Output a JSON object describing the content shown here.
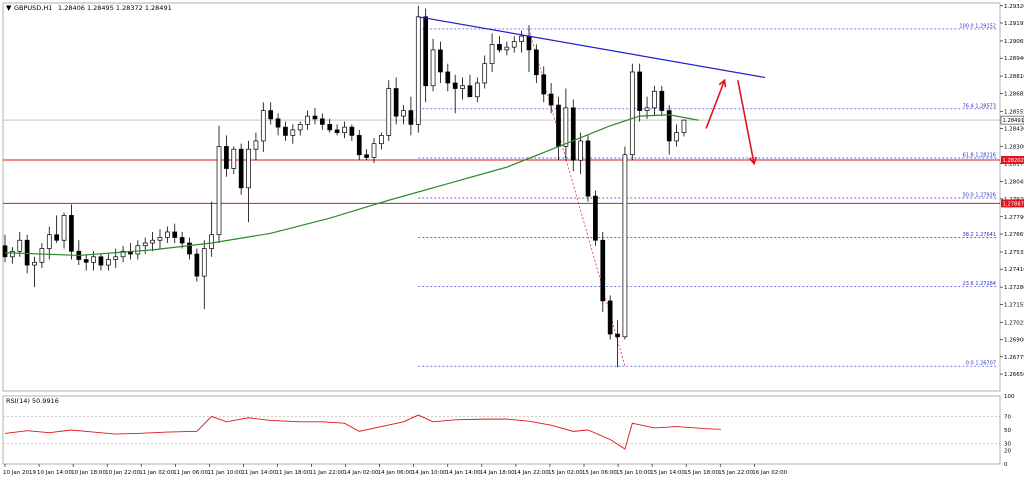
{
  "window": {
    "title": "GBPUSD,H1",
    "ohlc": "1.28406 1.28495 1.28372 1.28491"
  },
  "chart_data": [
    {
      "type": "candlestick",
      "symbol": "GBPUSD",
      "timeframe": "H1",
      "ylim": [
        1.26527,
        1.2934
      ],
      "y_ticks": [
        "1.29320",
        "1.29195",
        "1.29065",
        "1.28940",
        "1.28810",
        "1.28685",
        "1.28555",
        "1.28430",
        "1.28300",
        "1.28175",
        "1.28045",
        "1.27920",
        "1.27790",
        "1.27665",
        "1.27535",
        "1.27410",
        "1.27280",
        "1.27155",
        "1.27025",
        "1.26900",
        "1.26775",
        "1.26650"
      ],
      "x_ticks": [
        "10 Jan 2019",
        "10 Jan 14:00",
        "10 Jan 18:00",
        "10 Jan 22:00",
        "11 Jan 02:00",
        "11 Jan 06:00",
        "11 Jan 10:00",
        "11 Jan 14:00",
        "11 Jan 18:00",
        "11 Jan 22:00",
        "14 Jan 02:00",
        "14 Jan 06:00",
        "14 Jan 10:00",
        "14 Jan 14:00",
        "14 Jan 18:00",
        "14 Jan 22:00",
        "15 Jan 02:00",
        "15 Jan 06:00",
        "15 Jan 10:00",
        "15 Jan 14:00",
        "15 Jan 18:00",
        "15 Jan 22:00",
        "16 Jan 02:00"
      ],
      "candles": [
        [
          1.2758,
          1.2766,
          1.2746,
          1.275
        ],
        [
          1.275,
          1.2757,
          1.2745,
          1.2754
        ],
        [
          1.2754,
          1.2768,
          1.275,
          1.2762
        ],
        [
          1.2762,
          1.2766,
          1.2738,
          1.2744
        ],
        [
          1.2744,
          1.275,
          1.2728,
          1.2746
        ],
        [
          1.2746,
          1.276,
          1.2742,
          1.2756
        ],
        [
          1.2756,
          1.2772,
          1.2748,
          1.2766
        ],
        [
          1.2766,
          1.278,
          1.276,
          1.2762
        ],
        [
          1.2762,
          1.2782,
          1.2756,
          1.278
        ],
        [
          1.278,
          1.2788,
          1.2748,
          1.2754
        ],
        [
          1.2754,
          1.2762,
          1.2744,
          1.2748
        ],
        [
          1.2748,
          1.2752,
          1.274,
          1.2746
        ],
        [
          1.2746,
          1.2754,
          1.274,
          1.275
        ],
        [
          1.275,
          1.2752,
          1.274,
          1.2744
        ],
        [
          1.2744,
          1.2752,
          1.274,
          1.2748
        ],
        [
          1.2748,
          1.2756,
          1.2742,
          1.275
        ],
        [
          1.275,
          1.2758,
          1.2746,
          1.2754
        ],
        [
          1.2754,
          1.276,
          1.2748,
          1.2752
        ],
        [
          1.2752,
          1.2762,
          1.2748,
          1.2758
        ],
        [
          1.2758,
          1.2764,
          1.2752,
          1.276
        ],
        [
          1.276,
          1.2768,
          1.2754,
          1.2762
        ],
        [
          1.2762,
          1.277,
          1.2756,
          1.2764
        ],
        [
          1.2764,
          1.2772,
          1.276,
          1.2768
        ],
        [
          1.2768,
          1.2774,
          1.276,
          1.2764
        ],
        [
          1.2764,
          1.2768,
          1.2756,
          1.276
        ],
        [
          1.276,
          1.2764,
          1.2748,
          1.2752
        ],
        [
          1.2752,
          1.2756,
          1.2732,
          1.2736
        ],
        [
          1.2736,
          1.2762,
          1.2712,
          1.2756
        ],
        [
          1.2756,
          1.279,
          1.275,
          1.2766
        ],
        [
          1.2766,
          1.2845,
          1.276,
          1.283
        ],
        [
          1.283,
          1.2838,
          1.2808,
          1.2814
        ],
        [
          1.2814,
          1.283,
          1.281,
          1.2828
        ],
        [
          1.2828,
          1.2832,
          1.2795,
          1.28
        ],
        [
          1.28,
          1.2834,
          1.2775,
          1.2828
        ],
        [
          1.2828,
          1.284,
          1.282,
          1.2834
        ],
        [
          1.2834,
          1.2862,
          1.2826,
          1.2856
        ],
        [
          1.2856,
          1.2862,
          1.2846,
          1.285
        ],
        [
          1.285,
          1.2854,
          1.2838,
          1.2844
        ],
        [
          1.2844,
          1.2848,
          1.2834,
          1.2838
        ],
        [
          1.2838,
          1.2846,
          1.2832,
          1.2842
        ],
        [
          1.2842,
          1.2848,
          1.2838,
          1.2846
        ],
        [
          1.2846,
          1.2856,
          1.2842,
          1.2852
        ],
        [
          1.2852,
          1.2858,
          1.2846,
          1.285
        ],
        [
          1.285,
          1.2854,
          1.2842,
          1.2846
        ],
        [
          1.2846,
          1.285,
          1.284,
          1.2842
        ],
        [
          1.2842,
          1.2846,
          1.2838,
          1.284
        ],
        [
          1.284,
          1.2848,
          1.2836,
          1.2844
        ],
        [
          1.2844,
          1.2846,
          1.2834,
          1.2838
        ],
        [
          1.2838,
          1.2842,
          1.282,
          1.2824
        ],
        [
          1.2824,
          1.2828,
          1.282,
          1.2822
        ],
        [
          1.2822,
          1.2836,
          1.2818,
          1.2832
        ],
        [
          1.2832,
          1.284,
          1.2828,
          1.2838
        ],
        [
          1.2838,
          1.2878,
          1.2834,
          1.2872
        ],
        [
          1.2872,
          1.288,
          1.2846,
          1.2852
        ],
        [
          1.2852,
          1.286,
          1.2846,
          1.2856
        ],
        [
          1.2856,
          1.2866,
          1.2838,
          1.2846
        ],
        [
          1.2846,
          1.2932,
          1.284,
          1.2924
        ],
        [
          1.2924,
          1.293,
          1.2862,
          1.2874
        ],
        [
          1.2874,
          1.2908,
          1.287,
          1.29
        ],
        [
          1.29,
          1.2906,
          1.2876,
          1.2884
        ],
        [
          1.2884,
          1.289,
          1.287,
          1.2876
        ],
        [
          1.2876,
          1.2882,
          1.2854,
          1.2872
        ],
        [
          1.2872,
          1.288,
          1.2864,
          1.2874
        ],
        [
          1.2874,
          1.2882,
          1.2868,
          1.2866
        ],
        [
          1.2866,
          1.288,
          1.2862,
          1.2876
        ],
        [
          1.2876,
          1.2896,
          1.2872,
          1.289
        ],
        [
          1.289,
          1.2912,
          1.2884,
          1.2904
        ],
        [
          1.2904,
          1.291,
          1.2898,
          1.29
        ],
        [
          1.29,
          1.2906,
          1.2896,
          1.2902
        ],
        [
          1.2902,
          1.291,
          1.2898,
          1.2906
        ],
        [
          1.2906,
          1.2914,
          1.2898,
          1.291
        ],
        [
          1.291,
          1.2918,
          1.2884,
          1.29
        ],
        [
          1.29,
          1.2904,
          1.2876,
          1.2882
        ],
        [
          1.2882,
          1.2888,
          1.2862,
          1.2868
        ],
        [
          1.2868,
          1.2876,
          1.2854,
          1.286
        ],
        [
          1.286,
          1.2866,
          1.282,
          1.283
        ],
        [
          1.283,
          1.2872,
          1.282,
          1.2858
        ],
        [
          1.2858,
          1.2864,
          1.2812,
          1.282
        ],
        [
          1.282,
          1.284,
          1.281,
          1.2834
        ],
        [
          1.2834,
          1.2838,
          1.279,
          1.2794
        ],
        [
          1.2794,
          1.2798,
          1.2758,
          1.2762
        ],
        [
          1.2762,
          1.2768,
          1.271,
          1.2718
        ],
        [
          1.2718,
          1.2722,
          1.269,
          1.2694
        ],
        [
          1.2694,
          1.2704,
          1.267,
          1.2692
        ],
        [
          1.2692,
          1.283,
          1.269,
          1.2824
        ],
        [
          1.2824,
          1.289,
          1.282,
          1.2884
        ],
        [
          1.2884,
          1.289,
          1.2848,
          1.2856
        ],
        [
          1.2856,
          1.2866,
          1.285,
          1.2858
        ],
        [
          1.2858,
          1.2874,
          1.2852,
          1.287
        ],
        [
          1.287,
          1.2874,
          1.2852,
          1.2856
        ],
        [
          1.2856,
          1.286,
          1.2824,
          1.2834
        ],
        [
          1.2834,
          1.2846,
          1.283,
          1.284
        ],
        [
          1.284,
          1.28495,
          1.28372,
          1.28491
        ]
      ],
      "moving_average": [
        [
          0,
          1.2753
        ],
        [
          10,
          1.2751
        ],
        [
          20,
          1.2755
        ],
        [
          28,
          1.276
        ],
        [
          36,
          1.2767
        ],
        [
          44,
          1.2778
        ],
        [
          52,
          1.2791
        ],
        [
          60,
          1.2803
        ],
        [
          68,
          1.2815
        ],
        [
          76,
          1.2832
        ],
        [
          82,
          1.2845
        ],
        [
          86,
          1.2852
        ],
        [
          90,
          1.2853
        ],
        [
          94,
          1.2849
        ]
      ],
      "trendline": {
        "from": [
          56,
          1.2924
        ],
        "to": [
          103,
          1.288
        ]
      },
      "projection_arrows": [
        {
          "from": [
            95,
            1.2843
          ],
          "to": [
            97.5,
            1.2878
          ]
        },
        {
          "from": [
            99.3,
            1.2878
          ],
          "to": [
            101.5,
            1.28175
          ]
        }
      ],
      "fib_levels": [
        {
          "ratio_label": "100.0",
          "value": 1.29152,
          "text": "100.0 1.29152"
        },
        {
          "ratio_label": "76.4",
          "value": 1.28573,
          "text": "76.4 1.28573"
        },
        {
          "ratio_label": "61.8",
          "value": 1.28216,
          "text": "61.8 1.28216"
        },
        {
          "ratio_label": "50.0",
          "value": 1.27926,
          "text": "50.0 1.27926"
        },
        {
          "ratio_label": "38.2",
          "value": 1.27641,
          "text": "38.2 1.27641"
        },
        {
          "ratio_label": "23.6",
          "value": 1.27284,
          "text": "23.6 1.27284"
        },
        {
          "ratio_label": "0.0",
          "value": 1.26707,
          "text": "0.0 1.26707"
        }
      ],
      "fib_swing": {
        "from": [
          71,
          1.29152
        ],
        "to": [
          84,
          1.26707
        ]
      },
      "support_levels": [
        {
          "value": 1.28202,
          "text": "1.28202"
        },
        {
          "value": 1.27887,
          "text": "1.27887"
        }
      ],
      "current_price": {
        "value": 1.28491,
        "text": "1.28491"
      },
      "colors": {
        "bull": "#ffffff",
        "bear": "#000000",
        "ma": "#2a8a2a",
        "trendline": "#1f1fd6",
        "support": "#e0141c",
        "fib": "#3030cc",
        "arrow": "#e0141c"
      }
    },
    {
      "type": "line",
      "indicator": "RSI(14) 50.9916",
      "ylim": [
        0,
        100
      ],
      "y_ticks": [
        "100",
        "70",
        "50",
        "30",
        "20",
        "0"
      ],
      "levels": [
        70,
        30
      ],
      "values": [
        [
          0,
          45
        ],
        [
          3,
          49
        ],
        [
          6,
          46
        ],
        [
          9,
          50
        ],
        [
          12,
          47
        ],
        [
          15,
          44
        ],
        [
          18,
          45
        ],
        [
          22,
          47
        ],
        [
          26,
          48
        ],
        [
          28,
          70
        ],
        [
          30,
          62
        ],
        [
          33,
          68
        ],
        [
          36,
          64
        ],
        [
          40,
          62
        ],
        [
          43,
          62
        ],
        [
          46,
          60
        ],
        [
          48,
          48
        ],
        [
          51,
          55
        ],
        [
          54,
          62
        ],
        [
          56,
          72
        ],
        [
          58,
          62
        ],
        [
          61,
          65
        ],
        [
          65,
          66
        ],
        [
          68,
          66
        ],
        [
          71,
          63
        ],
        [
          74,
          57
        ],
        [
          77,
          48
        ],
        [
          79,
          50
        ],
        [
          82,
          36
        ],
        [
          84,
          22
        ],
        [
          85,
          60
        ],
        [
          88,
          53
        ],
        [
          91,
          55
        ],
        [
          95,
          52
        ],
        [
          97,
          51
        ]
      ],
      "color": "#e0141c"
    }
  ]
}
